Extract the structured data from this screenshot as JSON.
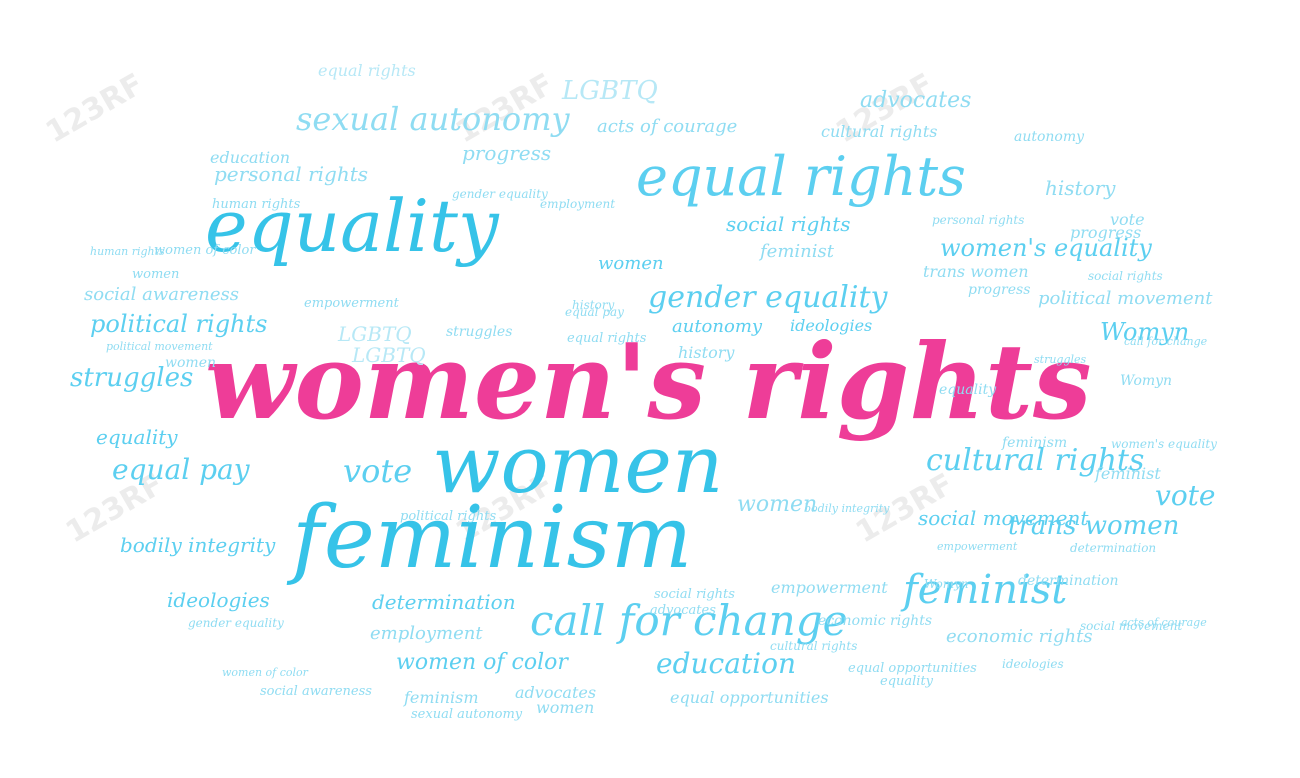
{
  "colors": {
    "main": "#ee3d98",
    "strong": "#36c3e8",
    "mid": "#5ccff0",
    "light": "#8fdcf2",
    "pale": "#b7e8f6"
  },
  "watermark": "123RF",
  "words": [
    {
      "text": "women's rights",
      "tone": "main"
    },
    {
      "text": "women",
      "tone": "strong"
    },
    {
      "text": "feminism",
      "tone": "strong"
    },
    {
      "text": "equality",
      "tone": "strong"
    },
    {
      "text": "equal rights",
      "tone": "mid"
    },
    {
      "text": "call for change",
      "tone": "mid"
    },
    {
      "text": "feminist",
      "tone": "mid"
    },
    {
      "text": "sexual autonomy",
      "tone": "light"
    },
    {
      "text": "cultural rights",
      "tone": "mid"
    },
    {
      "text": "gender equality",
      "tone": "mid"
    },
    {
      "text": "vote",
      "tone": "mid"
    },
    {
      "text": "vote",
      "tone": "mid"
    },
    {
      "text": "equal pay",
      "tone": "mid"
    },
    {
      "text": "struggles",
      "tone": "mid"
    },
    {
      "text": "political rights",
      "tone": "mid"
    },
    {
      "text": "women's equality",
      "tone": "mid"
    },
    {
      "text": "trans women",
      "tone": "mid"
    },
    {
      "text": "social movement",
      "tone": "mid"
    },
    {
      "text": "education",
      "tone": "mid"
    },
    {
      "text": "women of color",
      "tone": "mid"
    },
    {
      "text": "social rights",
      "tone": "mid"
    },
    {
      "text": "personal rights",
      "tone": "light"
    },
    {
      "text": "progress",
      "tone": "light"
    },
    {
      "text": "acts of courage",
      "tone": "light"
    },
    {
      "text": "advocates",
      "tone": "light"
    },
    {
      "text": "LGBTQ",
      "tone": "pale"
    },
    {
      "text": "equal rights",
      "tone": "pale"
    },
    {
      "text": "history",
      "tone": "light"
    },
    {
      "text": "autonomy",
      "tone": "mid"
    },
    {
      "text": "ideologies",
      "tone": "mid"
    },
    {
      "text": "Womyn",
      "tone": "mid"
    },
    {
      "text": "political movement",
      "tone": "light"
    },
    {
      "text": "bodily integrity",
      "tone": "mid"
    },
    {
      "text": "determination",
      "tone": "mid"
    },
    {
      "text": "employment",
      "tone": "light"
    },
    {
      "text": "economic rights",
      "tone": "light"
    },
    {
      "text": "empowerment",
      "tone": "light"
    },
    {
      "text": "women",
      "tone": "mid"
    },
    {
      "text": "women",
      "tone": "light"
    },
    {
      "text": "equality",
      "tone": "mid"
    },
    {
      "text": "social awareness",
      "tone": "light"
    },
    {
      "text": "ideologies",
      "tone": "mid"
    },
    {
      "text": "equal opportunities",
      "tone": "light"
    },
    {
      "text": "advocates",
      "tone": "light"
    },
    {
      "text": "feminism",
      "tone": "light"
    },
    {
      "text": "women",
      "tone": "light"
    },
    {
      "text": "LGBTQ",
      "tone": "pale"
    },
    {
      "text": "LGBTQ",
      "tone": "pale"
    },
    {
      "text": "human rights",
      "tone": "light"
    },
    {
      "text": "education",
      "tone": "light"
    },
    {
      "text": "history",
      "tone": "light"
    },
    {
      "text": "progress",
      "tone": "light"
    },
    {
      "text": "vote",
      "tone": "light"
    },
    {
      "text": "women",
      "tone": "light"
    },
    {
      "text": "Womyn",
      "tone": "light"
    },
    {
      "text": "struggles",
      "tone": "light"
    },
    {
      "text": "cultural rights",
      "tone": "light"
    },
    {
      "text": "autonomy",
      "tone": "light"
    },
    {
      "text": "equality",
      "tone": "light"
    },
    {
      "text": "feminist",
      "tone": "light"
    },
    {
      "text": "feminism",
      "tone": "light"
    },
    {
      "text": "trans women",
      "tone": "light"
    },
    {
      "text": "social awareness",
      "tone": "light"
    },
    {
      "text": "women of color",
      "tone": "light"
    },
    {
      "text": "progress",
      "tone": "light"
    },
    {
      "text": "equal opportunities",
      "tone": "light"
    },
    {
      "text": "women",
      "tone": "light"
    },
    {
      "text": "equal pay",
      "tone": "light"
    },
    {
      "text": "history",
      "tone": "light"
    },
    {
      "text": "social rights",
      "tone": "light"
    },
    {
      "text": "empowerment",
      "tone": "light"
    },
    {
      "text": "advocates",
      "tone": "light"
    },
    {
      "text": "sexual autonomy",
      "tone": "light"
    },
    {
      "text": "political rights",
      "tone": "light"
    },
    {
      "text": "determination",
      "tone": "light"
    },
    {
      "text": "social movement",
      "tone": "light"
    },
    {
      "text": "equal rights",
      "tone": "light"
    },
    {
      "text": "call for change",
      "tone": "light"
    },
    {
      "text": "social rights",
      "tone": "light"
    },
    {
      "text": "ideologies",
      "tone": "light"
    },
    {
      "text": "struggles",
      "tone": "light"
    },
    {
      "text": "employment",
      "tone": "light"
    },
    {
      "text": "gender equality",
      "tone": "light"
    },
    {
      "text": "women's equality",
      "tone": "light"
    },
    {
      "text": "bodily integrity",
      "tone": "light"
    },
    {
      "text": "cultural rights",
      "tone": "light"
    },
    {
      "text": "economic rights",
      "tone": "light"
    },
    {
      "text": "personal rights",
      "tone": "light"
    },
    {
      "text": "human rights",
      "tone": "light"
    },
    {
      "text": "gender equality",
      "tone": "light"
    },
    {
      "text": "women of color",
      "tone": "light"
    },
    {
      "text": "feminist",
      "tone": "light"
    },
    {
      "text": "Womyn",
      "tone": "light"
    },
    {
      "text": "acts of courage",
      "tone": "light"
    },
    {
      "text": "political movement",
      "tone": "light"
    },
    {
      "text": "determination",
      "tone": "light"
    },
    {
      "text": "equality",
      "tone": "light"
    },
    {
      "text": "empowerment",
      "tone": "light"
    }
  ]
}
